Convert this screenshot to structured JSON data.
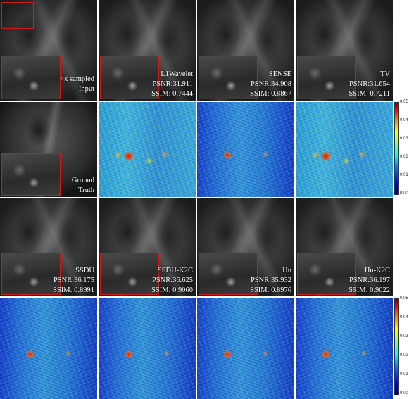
{
  "figure": {
    "rows": [
      {
        "type": "reconstruction",
        "panels": [
          {
            "id": "input",
            "label": [
              "4x sampled",
              "Input"
            ]
          },
          {
            "id": "l1wavelet",
            "label": [
              "L1Wavelet",
              "PSNR:31.911",
              "SSIM: 0.7444"
            ]
          },
          {
            "id": "sense",
            "label": [
              "SENSE",
              "PSNR:34.908",
              "SSIM: 0.8867"
            ]
          },
          {
            "id": "tv",
            "label": [
              "TV",
              "PSNR:31.654",
              "SSIM: 0.7211"
            ]
          }
        ]
      },
      {
        "type": "error",
        "panels": [
          {
            "id": "ground-truth",
            "label": [
              "Ground",
              "Truth"
            ]
          },
          {
            "id": "err-l1wavelet"
          },
          {
            "id": "err-sense"
          },
          {
            "id": "err-tv"
          }
        ]
      },
      {
        "type": "reconstruction",
        "panels": [
          {
            "id": "ssdu",
            "label": [
              "SSDU",
              "PSNR:36.175",
              "SSIM: 0.8991"
            ]
          },
          {
            "id": "ssdu-k2c",
            "label": [
              "SSDU-K2C",
              "PSNR:36.625",
              "SSIM: 0.9060"
            ]
          },
          {
            "id": "hu",
            "label": [
              "Hu",
              "PSNR:35.932",
              "SSIM: 0.8976"
            ]
          },
          {
            "id": "hu-k2c",
            "label": [
              "Hu-K2C",
              "PSNR:36.197",
              "SSIM: 0.9022"
            ]
          }
        ]
      },
      {
        "type": "error",
        "panels": [
          {
            "id": "err-ssdu"
          },
          {
            "id": "err-ssdu-k2c"
          },
          {
            "id": "err-hu"
          },
          {
            "id": "err-hu-k2c"
          }
        ]
      }
    ],
    "colorbar": {
      "ticks": [
        "0.05",
        "0.04",
        "0.03",
        "0.02",
        "0.01",
        "0.00"
      ],
      "colormap": "jet",
      "range": [
        0.0,
        0.05
      ]
    }
  }
}
